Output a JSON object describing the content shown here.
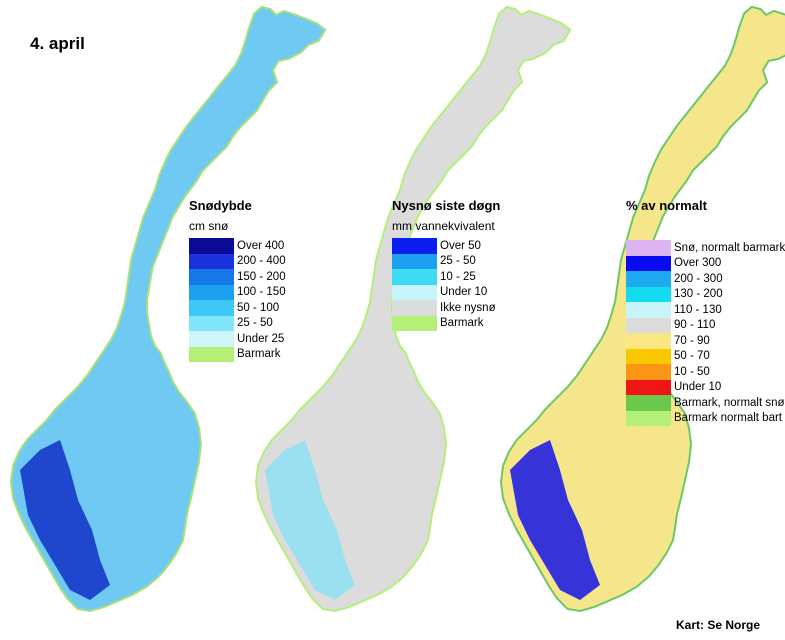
{
  "date_label": "4. april",
  "credit": "Kart: Se Norge",
  "maps": [
    {
      "id": "snodybde",
      "title": "Snødybde",
      "subtitle": "cm snø",
      "base_color": "#6fc9f2",
      "dark_color": "#1030c8",
      "coast_color": "#a8e07a",
      "legend": [
        {
          "label": "Over 400",
          "color": "#0a0a96"
        },
        {
          "label": "200 - 400",
          "color": "#1c32dc"
        },
        {
          "label": "150 - 200",
          "color": "#1478e6"
        },
        {
          "label": "100 - 150",
          "color": "#1ea0f0"
        },
        {
          "label": "50 - 100",
          "color": "#3cc8f5"
        },
        {
          "label": "25 - 50",
          "color": "#82e6fa"
        },
        {
          "label": "Under 25",
          "color": "#cdf5fa"
        },
        {
          "label": "Barmark",
          "color": "#b4f078"
        }
      ]
    },
    {
      "id": "nysno",
      "title": "Nysnø siste døgn",
      "subtitle": "mm vannekvivalent",
      "base_color": "#dcdcdc",
      "dark_color": "#8ee0f5",
      "coast_color": "#b4f078",
      "legend": [
        {
          "label": "Over 50",
          "color": "#0a1ef0"
        },
        {
          "label": "25 - 50",
          "color": "#1ea0f0"
        },
        {
          "label": "10 - 25",
          "color": "#3cdcf5"
        },
        {
          "label": "Under 10",
          "color": "#c8f5fa"
        },
        {
          "label": "Ikke nysnø",
          "color": "#dcdcdc"
        },
        {
          "label": "Barmark",
          "color": "#b4f078"
        }
      ]
    },
    {
      "id": "prosent",
      "title": "% av normalt",
      "subtitle": "",
      "base_color": "#f5e68c",
      "dark_color": "#1414e6",
      "coast_color": "#6cc864",
      "legend": [
        {
          "label": "Snø, normalt barmark",
          "color": "#dcb4f0"
        },
        {
          "label": "Over 300",
          "color": "#0a0af0"
        },
        {
          "label": "200 - 300",
          "color": "#1eaaf0"
        },
        {
          "label": "130 - 200",
          "color": "#14dcf0"
        },
        {
          "label": "110 - 130",
          "color": "#c8f5fa"
        },
        {
          "label": "90 - 110",
          "color": "#dcdcdc"
        },
        {
          "label": "70 - 90",
          "color": "#fae682"
        },
        {
          "label": "50 - 70",
          "color": "#fac800"
        },
        {
          "label": "10 - 50",
          "color": "#fa9614"
        },
        {
          "label": "Under 10",
          "color": "#f01414"
        },
        {
          "label": "Barmark, normalt snø",
          "color": "#6cc84a"
        },
        {
          "label": "Barmark normalt bart",
          "color": "#b4f078"
        }
      ]
    }
  ]
}
